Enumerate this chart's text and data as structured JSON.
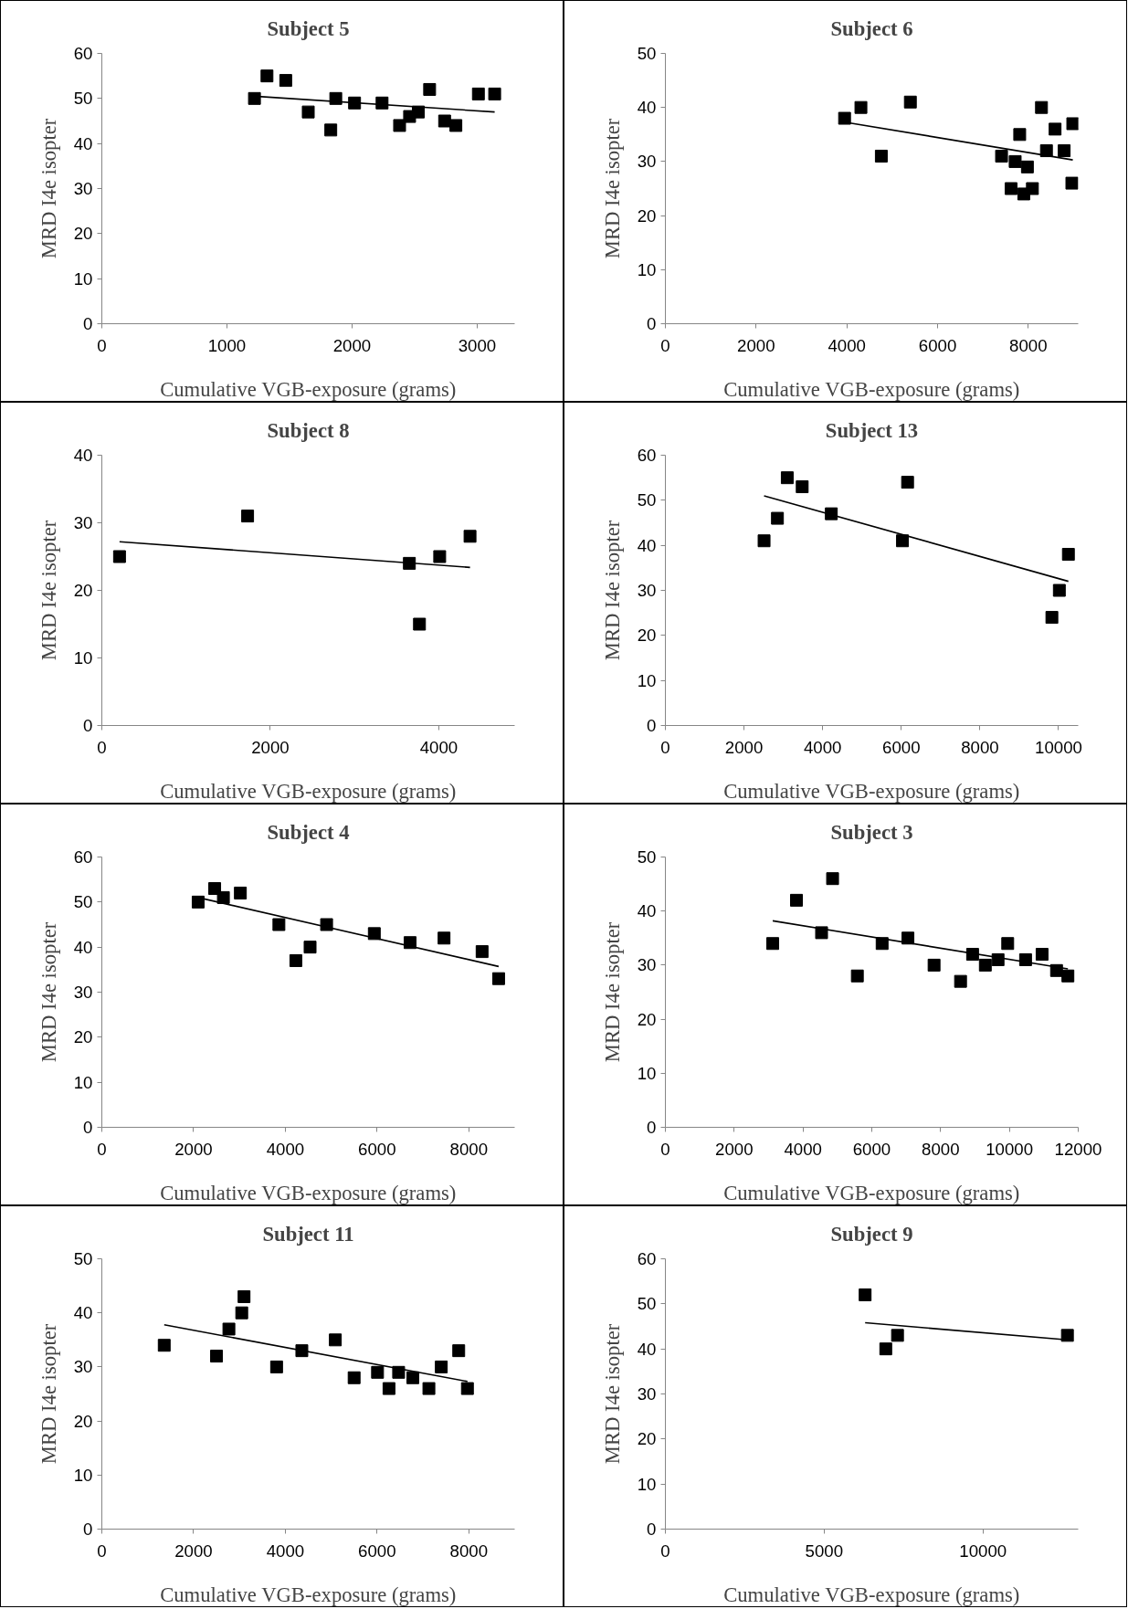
{
  "chart_data": [
    {
      "type": "scatter",
      "title": "Subject 5",
      "xlabel": "Cumulative VGB-exposure (grams)",
      "ylabel": "MRD I4e isopter",
      "xlim": [
        0,
        3300
      ],
      "xticks": [
        0,
        1000,
        2000,
        3000
      ],
      "ylim": [
        0,
        60
      ],
      "yticks": [
        0,
        10,
        20,
        30,
        40,
        50,
        60
      ],
      "series": [
        {
          "marker": "square",
          "x": [
            1220,
            1320,
            1470,
            1650,
            1830,
            1870,
            2020,
            2240,
            2380,
            2460,
            2530,
            2620,
            2740,
            2830,
            3010,
            3140
          ],
          "values": [
            50,
            55,
            54,
            47,
            43,
            50,
            49,
            49,
            44,
            46,
            47,
            52,
            45,
            44,
            51,
            51
          ],
          "color": "#000000"
        },
        {
          "type": "line",
          "x": [
            1220,
            3140
          ],
          "values": [
            50.5,
            47
          ],
          "color": "#000000"
        }
      ]
    },
    {
      "type": "scatter",
      "title": "Subject 6",
      "xlabel": "Cumulative VGB-exposure (grams)",
      "ylabel": "MRD I4e isopter",
      "xlim": [
        0,
        9100
      ],
      "xticks": [
        0,
        2000,
        4000,
        6000,
        8000
      ],
      "ylim": [
        0,
        50
      ],
      "yticks": [
        0,
        10,
        20,
        30,
        40,
        50
      ],
      "series": [
        {
          "marker": "square",
          "x": [
            3950,
            4310,
            4760,
            5400,
            7410,
            7620,
            7710,
            7810,
            7900,
            7980,
            8090,
            8290,
            8400,
            8590,
            8790,
            8960,
            8980
          ],
          "values": [
            38,
            40,
            31,
            41,
            31,
            25,
            30,
            35,
            24,
            29,
            25,
            40,
            32,
            36,
            32,
            26,
            37
          ],
          "color": "#000000"
        },
        {
          "type": "line",
          "x": [
            3950,
            8980
          ],
          "values": [
            37.3,
            30.3
          ],
          "color": "#000000"
        }
      ]
    },
    {
      "type": "scatter",
      "title": "Subject 8",
      "xlabel": "Cumulative VGB-exposure (grams)",
      "ylabel": "MRD I4e isopter",
      "xlim": [
        0,
        4900
      ],
      "xticks": [
        0,
        2000,
        4000
      ],
      "ylim": [
        0,
        40
      ],
      "yticks": [
        0,
        10,
        20,
        30,
        40
      ],
      "series": [
        {
          "marker": "square",
          "x": [
            210,
            1730,
            3650,
            3770,
            4010,
            4370
          ],
          "values": [
            25,
            31,
            24,
            15,
            25,
            28
          ],
          "color": "#000000"
        },
        {
          "type": "line",
          "x": [
            210,
            4370
          ],
          "values": [
            27.2,
            23.4
          ],
          "color": "#000000"
        }
      ]
    },
    {
      "type": "scatter",
      "title": "Subject 13",
      "xlabel": "Cumulative VGB-exposure (grams)",
      "ylabel": "MRD I4e isopter",
      "xlim": [
        0,
        10500
      ],
      "xticks": [
        0,
        2000,
        4000,
        6000,
        8000,
        10000
      ],
      "ylim": [
        0,
        60
      ],
      "yticks": [
        0,
        10,
        20,
        30,
        40,
        50,
        60
      ],
      "series": [
        {
          "marker": "square",
          "x": [
            2510,
            2850,
            3100,
            3480,
            4220,
            6030,
            6160,
            9830,
            10020,
            10250
          ],
          "values": [
            41,
            46,
            55,
            53,
            47,
            41,
            54,
            24,
            30,
            38
          ],
          "color": "#000000"
        },
        {
          "type": "line",
          "x": [
            2510,
            10250
          ],
          "values": [
            51,
            32
          ],
          "color": "#000000"
        }
      ]
    },
    {
      "type": "scatter",
      "title": "Subject 4",
      "xlabel": "Cumulative VGB-exposure (grams)",
      "ylabel": "MRD I4e isopter",
      "xlim": [
        0,
        9000
      ],
      "xticks": [
        0,
        2000,
        4000,
        6000,
        8000
      ],
      "ylim": [
        0,
        60
      ],
      "yticks": [
        0,
        10,
        20,
        30,
        40,
        50,
        60
      ],
      "series": [
        {
          "marker": "square",
          "x": [
            2100,
            2460,
            2650,
            3020,
            3860,
            4230,
            4540,
            4900,
            5940,
            6720,
            7460,
            8290,
            8650
          ],
          "values": [
            50,
            53,
            51,
            52,
            45,
            37,
            40,
            45,
            43,
            41,
            42,
            39,
            33
          ],
          "color": "#000000"
        },
        {
          "type": "line",
          "x": [
            2100,
            8650
          ],
          "values": [
            51,
            35.7
          ],
          "color": "#000000"
        }
      ]
    },
    {
      "type": "scatter",
      "title": "Subject 3",
      "xlabel": "Cumulative VGB-exposure (grams)",
      "ylabel": "MRD I4e isopter",
      "xlim": [
        0,
        12000
      ],
      "xticks": [
        0,
        2000,
        4000,
        6000,
        8000,
        10000,
        12000
      ],
      "ylim": [
        0,
        50
      ],
      "yticks": [
        0,
        10,
        20,
        30,
        40,
        50
      ],
      "series": [
        {
          "marker": "square",
          "x": [
            3120,
            3810,
            4540,
            4860,
            5580,
            6300,
            7050,
            7810,
            8580,
            8930,
            9300,
            9670,
            9950,
            10470,
            10950,
            11370,
            11700
          ],
          "values": [
            34,
            42,
            36,
            46,
            28,
            34,
            35,
            30,
            27,
            32,
            30,
            31,
            34,
            31,
            32,
            29,
            28
          ],
          "color": "#000000"
        },
        {
          "type": "line",
          "x": [
            3120,
            11700
          ],
          "values": [
            38.2,
            29.3
          ],
          "color": "#000000"
        }
      ]
    },
    {
      "type": "scatter",
      "title": "Subject 11",
      "xlabel": "Cumulative VGB-exposure (grams)",
      "ylabel": "MRD I4e isopter",
      "xlim": [
        0,
        9000
      ],
      "xticks": [
        0,
        2000,
        4000,
        6000,
        8000
      ],
      "ylim": [
        0,
        50
      ],
      "yticks": [
        0,
        10,
        20,
        30,
        40,
        50
      ],
      "series": [
        {
          "marker": "square",
          "x": [
            1360,
            2500,
            2770,
            3050,
            3100,
            3810,
            4360,
            5090,
            5500,
            6010,
            6260,
            6470,
            6780,
            7130,
            7400,
            7780,
            7970
          ],
          "values": [
            34,
            32,
            37,
            40,
            43,
            30,
            33,
            35,
            28,
            29,
            26,
            29,
            28,
            26,
            30,
            33,
            26
          ],
          "color": "#000000"
        },
        {
          "type": "line",
          "x": [
            1360,
            7970
          ],
          "values": [
            37.8,
            27.3
          ],
          "color": "#000000"
        }
      ]
    },
    {
      "type": "scatter",
      "title": "Subject 9",
      "xlabel": "Cumulative VGB-exposure (grams)",
      "ylabel": "MRD I4e isopter",
      "xlim": [
        0,
        13000
      ],
      "xticks": [
        0,
        5000,
        10000
      ],
      "ylim": [
        0,
        60
      ],
      "yticks": [
        0,
        10,
        20,
        30,
        40,
        50,
        60
      ],
      "series": [
        {
          "marker": "square",
          "x": [
            6290,
            6940,
            7310,
            12660
          ],
          "values": [
            52,
            40,
            43,
            43
          ],
          "color": "#000000"
        },
        {
          "type": "line",
          "x": [
            6290,
            12660
          ],
          "values": [
            45.8,
            42
          ],
          "color": "#000000"
        }
      ]
    }
  ]
}
